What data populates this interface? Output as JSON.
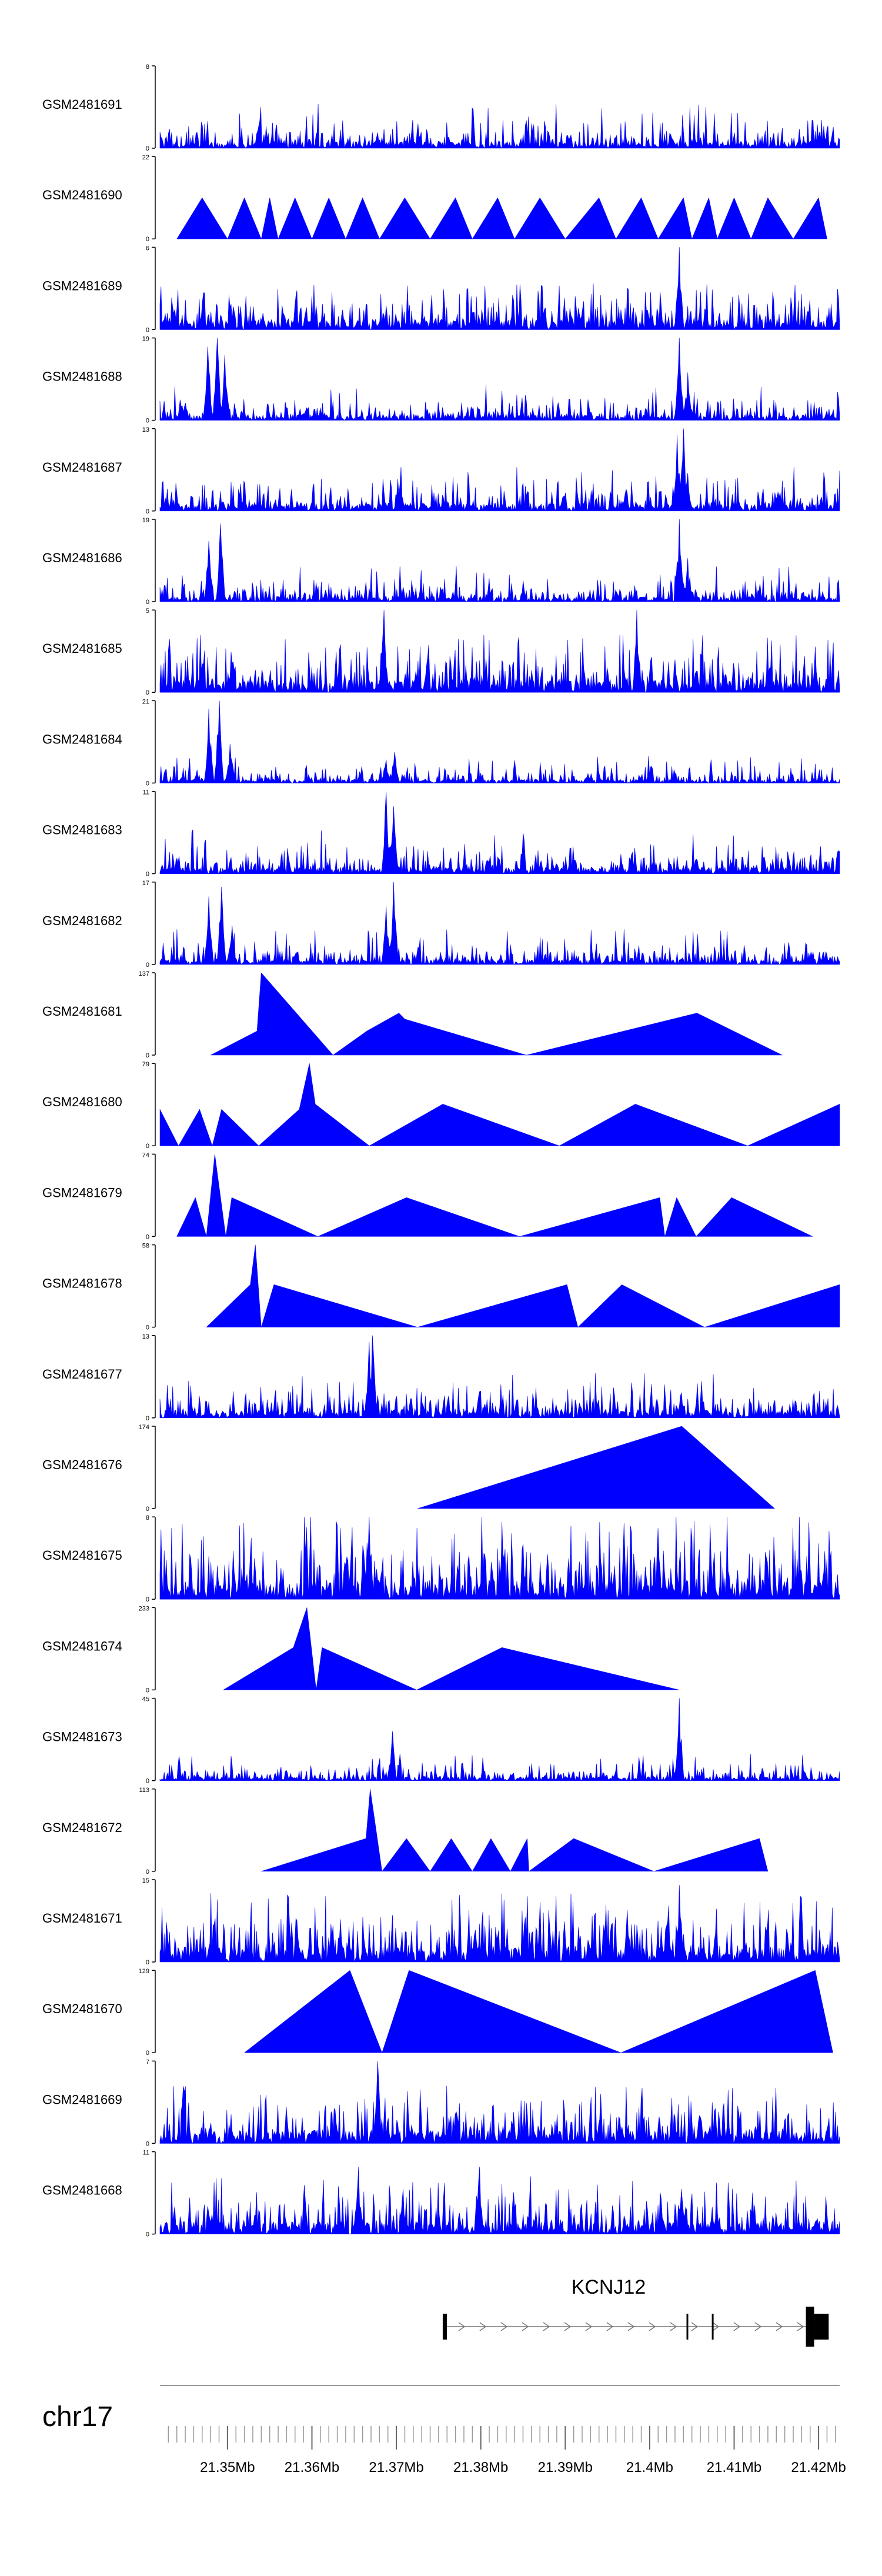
{
  "chart_data": {
    "type": "area",
    "title": "",
    "chromosome": "chr17",
    "gene": {
      "name": "KCNJ12",
      "start_mb": 21.3757,
      "end_mb": 21.4212,
      "exon_mb": [
        21.4045,
        21.4075
      ]
    },
    "x_range_mb": [
      21.342,
      21.4225
    ],
    "x_ticks": [
      {
        "value": 21.35,
        "label": "21.35Mb"
      },
      {
        "value": 21.36,
        "label": "21.36Mb"
      },
      {
        "value": 21.37,
        "label": "21.37Mb"
      },
      {
        "value": 21.38,
        "label": "21.38Mb"
      },
      {
        "value": 21.39,
        "label": "21.39Mb"
      },
      {
        "value": 21.4,
        "label": "21.4Mb"
      },
      {
        "value": 21.41,
        "label": "21.41Mb"
      },
      {
        "value": 21.42,
        "label": "21.42Mb"
      }
    ],
    "series": [
      {
        "name": "GSM2481691",
        "ymax": 8,
        "style": "dense",
        "baseline": 0.05,
        "peaks": []
      },
      {
        "name": "GSM2481690",
        "ymax": 22,
        "style": "sparse",
        "baseline": 0,
        "peaks": [
          [
            21.344,
            0
          ],
          [
            21.347,
            11
          ],
          [
            21.35,
            0
          ],
          [
            21.352,
            11
          ],
          [
            21.354,
            0
          ],
          [
            21.355,
            11
          ],
          [
            21.356,
            0
          ],
          [
            21.358,
            11
          ],
          [
            21.36,
            0
          ],
          [
            21.362,
            11
          ],
          [
            21.364,
            0
          ],
          [
            21.366,
            11
          ],
          [
            21.368,
            0
          ],
          [
            21.371,
            11
          ],
          [
            21.374,
            0
          ],
          [
            21.377,
            11
          ],
          [
            21.379,
            0
          ],
          [
            21.382,
            11
          ],
          [
            21.384,
            0
          ],
          [
            21.387,
            11
          ],
          [
            21.39,
            0
          ],
          [
            21.394,
            11
          ],
          [
            21.396,
            0
          ],
          [
            21.399,
            11
          ],
          [
            21.401,
            0
          ],
          [
            21.404,
            11
          ],
          [
            21.405,
            0
          ],
          [
            21.407,
            11
          ],
          [
            21.408,
            0
          ],
          [
            21.41,
            11
          ],
          [
            21.412,
            0
          ],
          [
            21.414,
            11
          ],
          [
            21.417,
            0
          ],
          [
            21.42,
            11
          ],
          [
            21.421,
            0
          ]
        ]
      },
      {
        "name": "GSM2481689",
        "ymax": 6,
        "style": "dense",
        "baseline": 0.08,
        "peaks": [
          [
            21.4035,
            6
          ]
        ]
      },
      {
        "name": "GSM2481688",
        "ymax": 19,
        "style": "dense",
        "baseline": 0.04,
        "peaks": [
          [
            21.345,
            4
          ],
          [
            21.3477,
            17
          ],
          [
            21.3488,
            19
          ],
          [
            21.3497,
            15
          ],
          [
            21.4035,
            19
          ],
          [
            21.4045,
            11
          ]
        ]
      },
      {
        "name": "GSM2481687",
        "ymax": 13,
        "style": "dense",
        "baseline": 0.06,
        "peaks": [
          [
            21.3705,
            5
          ],
          [
            21.4033,
            12
          ],
          [
            21.404,
            13
          ],
          [
            21.4045,
            6
          ]
        ]
      },
      {
        "name": "GSM2481686",
        "ymax": 19,
        "style": "dense",
        "baseline": 0.04,
        "peaks": [
          [
            21.3478,
            14
          ],
          [
            21.3492,
            18
          ],
          [
            21.3705,
            3
          ],
          [
            21.4035,
            19
          ],
          [
            21.4045,
            10
          ]
        ]
      },
      {
        "name": "GSM2481685",
        "ymax": 5,
        "style": "dense",
        "baseline": 0.1,
        "peaks": [
          [
            21.3685,
            5
          ],
          [
            21.3985,
            5
          ]
        ]
      },
      {
        "name": "GSM2481684",
        "ymax": 21,
        "style": "dense",
        "baseline": 0.03,
        "peaks": [
          [
            21.3478,
            19
          ],
          [
            21.349,
            21
          ],
          [
            21.3503,
            10
          ],
          [
            21.3688,
            6
          ],
          [
            21.3698,
            8
          ]
        ]
      },
      {
        "name": "GSM2481683",
        "ymax": 11,
        "style": "dense",
        "baseline": 0.05,
        "peaks": [
          [
            21.3688,
            11
          ],
          [
            21.3697,
            9
          ]
        ]
      },
      {
        "name": "GSM2481682",
        "ymax": 17,
        "style": "dense",
        "baseline": 0.04,
        "peaks": [
          [
            21.3478,
            14
          ],
          [
            21.3493,
            16
          ],
          [
            21.3505,
            8
          ],
          [
            21.3688,
            12
          ],
          [
            21.3697,
            17
          ]
        ]
      },
      {
        "name": "GSM2481681",
        "ymax": 137,
        "style": "sparse",
        "baseline": 0,
        "peaks": [
          [
            21.348,
            0
          ],
          [
            21.3535,
            40
          ],
          [
            21.354,
            137
          ],
          [
            21.3625,
            0
          ],
          [
            21.3665,
            40
          ],
          [
            21.3703,
            70
          ],
          [
            21.371,
            60
          ],
          [
            21.3854,
            0
          ],
          [
            21.4056,
            70
          ],
          [
            21.4157,
            0
          ]
        ]
      },
      {
        "name": "GSM2481680",
        "ymax": 79,
        "style": "sparse",
        "baseline": 0,
        "peaks": [
          [
            21.342,
            35
          ],
          [
            21.3442,
            0
          ],
          [
            21.3467,
            35
          ],
          [
            21.3482,
            0
          ],
          [
            21.3493,
            35
          ],
          [
            21.3537,
            0
          ],
          [
            21.3585,
            35
          ],
          [
            21.3597,
            79
          ],
          [
            21.3604,
            40
          ],
          [
            21.3668,
            0
          ],
          [
            21.3755,
            40
          ],
          [
            21.3893,
            0
          ],
          [
            21.3983,
            40
          ],
          [
            21.4116,
            0
          ],
          [
            21.4225,
            40
          ]
        ]
      },
      {
        "name": "GSM2481679",
        "ymax": 74,
        "style": "sparse",
        "baseline": 0,
        "peaks": [
          [
            21.344,
            0
          ],
          [
            21.3462,
            35
          ],
          [
            21.3475,
            0
          ],
          [
            21.3485,
            74
          ],
          [
            21.3498,
            0
          ],
          [
            21.3505,
            35
          ],
          [
            21.3607,
            0
          ],
          [
            21.3712,
            35
          ],
          [
            21.3846,
            0
          ],
          [
            21.4012,
            35
          ],
          [
            21.4018,
            0
          ],
          [
            21.4032,
            35
          ],
          [
            21.4055,
            0
          ],
          [
            21.4097,
            35
          ],
          [
            21.4193,
            0
          ]
        ]
      },
      {
        "name": "GSM2481678",
        "ymax": 58,
        "style": "sparse",
        "baseline": 0,
        "peaks": [
          [
            21.3475,
            0
          ],
          [
            21.3527,
            30
          ],
          [
            21.3533,
            58
          ],
          [
            21.354,
            0
          ],
          [
            21.3555,
            30
          ],
          [
            21.3725,
            0
          ],
          [
            21.3902,
            30
          ],
          [
            21.3915,
            0
          ],
          [
            21.3967,
            30
          ],
          [
            21.4065,
            0
          ],
          [
            21.4225,
            30
          ]
        ]
      },
      {
        "name": "GSM2481677",
        "ymax": 13,
        "style": "dense",
        "baseline": 0.06,
        "peaks": [
          [
            21.3668,
            12
          ],
          [
            21.3672,
            13
          ],
          [
            21.4037,
            4
          ]
        ]
      },
      {
        "name": "GSM2481676",
        "ymax": 174,
        "style": "sparse",
        "baseline": 0,
        "peaks": [
          [
            21.3725,
            0
          ],
          [
            21.4038,
            174
          ],
          [
            21.4148,
            0
          ]
        ]
      },
      {
        "name": "GSM2481675",
        "ymax": 8,
        "style": "dense",
        "baseline": 0.15,
        "peaks": [
          [
            21.3668,
            8
          ]
        ]
      },
      {
        "name": "GSM2481674",
        "ymax": 233,
        "style": "sparse",
        "baseline": 0,
        "peaks": [
          [
            21.3495,
            0
          ],
          [
            21.3578,
            120
          ],
          [
            21.3594,
            233
          ],
          [
            21.3605,
            0
          ],
          [
            21.3612,
            120
          ],
          [
            21.3724,
            0
          ],
          [
            21.3825,
            120
          ],
          [
            21.4035,
            0
          ]
        ]
      },
      {
        "name": "GSM2481673",
        "ymax": 45,
        "style": "dense",
        "baseline": 0.03,
        "peaks": [
          [
            21.3695,
            27
          ],
          [
            21.4035,
            45
          ]
        ]
      },
      {
        "name": "GSM2481672",
        "ymax": 113,
        "style": "sparse",
        "baseline": 0,
        "peaks": [
          [
            21.354,
            0
          ],
          [
            21.3664,
            45
          ],
          [
            21.3669,
            113
          ],
          [
            21.3683,
            0
          ],
          [
            21.3712,
            45
          ],
          [
            21.374,
            0
          ],
          [
            21.3765,
            45
          ],
          [
            21.379,
            0
          ],
          [
            21.3812,
            45
          ],
          [
            21.3835,
            0
          ],
          [
            21.3855,
            45
          ],
          [
            21.3857,
            0
          ],
          [
            21.391,
            45
          ],
          [
            21.4005,
            0
          ],
          [
            21.413,
            45
          ],
          [
            21.414,
            0
          ]
        ]
      },
      {
        "name": "GSM2481671",
        "ymax": 15,
        "style": "dense",
        "baseline": 0.12,
        "peaks": [
          [
            21.4035,
            14
          ]
        ]
      },
      {
        "name": "GSM2481670",
        "ymax": 129,
        "style": "sparse",
        "baseline": 0,
        "peaks": [
          [
            21.352,
            0
          ],
          [
            21.3645,
            129
          ],
          [
            21.3683,
            0
          ],
          [
            21.3715,
            129
          ],
          [
            21.3966,
            0
          ],
          [
            21.4196,
            129
          ],
          [
            21.4217,
            0
          ]
        ]
      },
      {
        "name": "GSM2481669",
        "ymax": 7,
        "style": "dense",
        "baseline": 0.1,
        "peaks": [
          [
            21.3678,
            7
          ]
        ]
      },
      {
        "name": "GSM2481668",
        "ymax": 11,
        "style": "dense",
        "baseline": 0.1,
        "peaks": [
          [
            21.3655,
            9
          ],
          [
            21.3708,
            6
          ],
          [
            21.3798,
            9
          ],
          [
            21.4038,
            6
          ]
        ]
      }
    ]
  }
}
